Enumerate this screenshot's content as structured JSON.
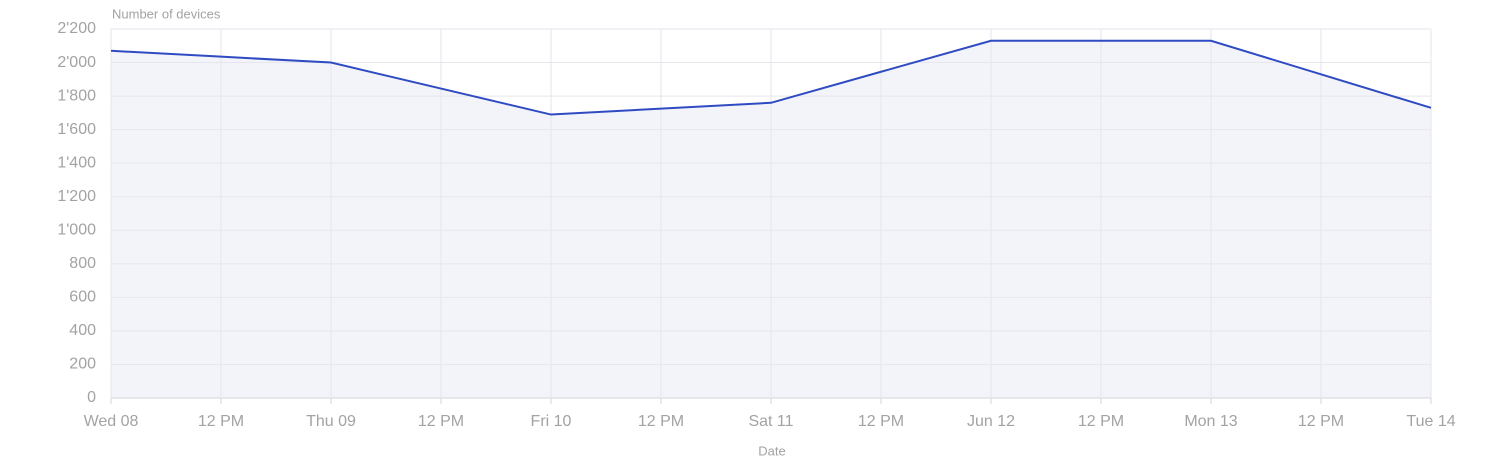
{
  "chart_data": {
    "type": "area",
    "y_label": "Number of devices",
    "x_label": "Date",
    "categories": [
      "Wed 08",
      "12 PM",
      "Thu 09",
      "12 PM",
      "Fri 10",
      "12 PM",
      "Sat 11",
      "12 PM",
      "Jun 12",
      "12 PM",
      "Mon 13",
      "12 PM",
      "Tue 14"
    ],
    "series": [
      {
        "name": "Number of devices",
        "color": "#2f4bc2",
        "values": [
          2070,
          2035,
          2000,
          1845,
          1690,
          1725,
          1760,
          1945,
          2130,
          2130,
          2130,
          1930,
          1730
        ]
      }
    ],
    "ylim": [
      0,
      2200
    ],
    "yticks": [
      0,
      200,
      400,
      600,
      800,
      {
        "value": 1000,
        "label": "1'000"
      },
      {
        "value": 1200,
        "label": "1'200"
      },
      {
        "value": 1400,
        "label": "1'400"
      },
      {
        "value": 1600,
        "label": "1'600"
      },
      {
        "value": 1800,
        "label": "1'800"
      },
      {
        "value": 2000,
        "label": "2'000"
      },
      {
        "value": 2200,
        "label": "2'200"
      }
    ],
    "grid": true
  }
}
